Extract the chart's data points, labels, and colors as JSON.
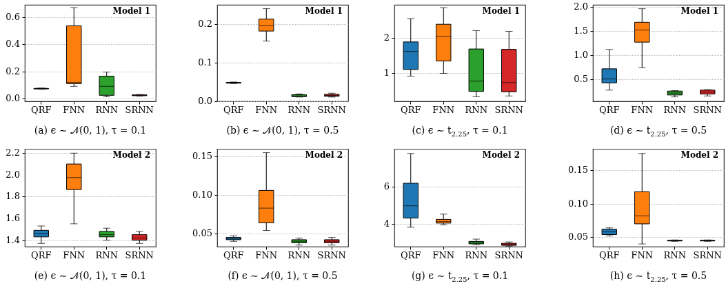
{
  "chart_data": [
    {
      "type": "box",
      "title": "(a) ϵ ∼ 𝒩(0, 1), τ = 0.1",
      "annotations": [
        "Model 1"
      ],
      "categories": [
        "QRF",
        "FNN",
        "RNN",
        "SRNN"
      ],
      "colors": [
        "#1f77b4",
        "#ff7f0e",
        "#2ca02c",
        "#d62728"
      ],
      "grid": "y",
      "ylim": [
        -0.02,
        0.69
      ],
      "yticks": [
        {
          "value": 0,
          "label": "0.0"
        },
        0.2,
        0.4,
        0.6
      ],
      "boxes": [
        {
          "low": 0.07,
          "q1": 0.071,
          "median": 0.073,
          "q3": 0.075,
          "high": 0.077
        },
        {
          "low": 0.09,
          "q1": 0.11,
          "median": 0.12,
          "q3": 0.535,
          "high": 0.67
        },
        {
          "low": 0.013,
          "q1": 0.024,
          "median": 0.09,
          "q3": 0.165,
          "high": 0.195
        },
        {
          "low": 0.018,
          "q1": 0.021,
          "median": 0.024,
          "q3": 0.027,
          "high": 0.03
        }
      ]
    },
    {
      "type": "box",
      "title": "(b) ϵ ∼ 𝒩(0, 1), τ = 0.5",
      "annotations": [
        "Model 1"
      ],
      "categories": [
        "QRF",
        "FNN",
        "RNN",
        "SRNN"
      ],
      "colors": [
        "#1f77b4",
        "#ff7f0e",
        "#2ca02c",
        "#d62728"
      ],
      "grid": "y",
      "ylim": [
        0,
        0.25
      ],
      "yticks": [
        {
          "value": 0,
          "label": "0.0"
        },
        {
          "value": 0.1,
          "label": "0.1"
        },
        {
          "value": 0.2,
          "label": "0.2"
        }
      ],
      "boxes": [
        {
          "low": 0.046,
          "q1": 0.047,
          "median": 0.048,
          "q3": 0.049,
          "high": 0.05
        },
        {
          "low": 0.156,
          "q1": 0.182,
          "median": 0.196,
          "q3": 0.213,
          "high": 0.24
        },
        {
          "low": 0.011,
          "q1": 0.012,
          "median": 0.014,
          "q3": 0.017,
          "high": 0.019
        },
        {
          "low": 0.011,
          "q1": 0.013,
          "median": 0.015,
          "q3": 0.018,
          "high": 0.021
        }
      ]
    },
    {
      "type": "box",
      "title": "(c) ϵ ∼ t$_{2.25}$, τ = 0.1",
      "annotations": [
        "Model 1"
      ],
      "categories": [
        "QRF",
        "FNN",
        "RNN",
        "SRNN"
      ],
      "colors": [
        "#1f77b4",
        "#ff7f0e",
        "#2ca02c",
        "#d62728"
      ],
      "grid": "y",
      "ylim": [
        0.2,
        2.93
      ],
      "yticks": [
        {
          "value": 1,
          "label": "1"
        },
        {
          "value": 2,
          "label": "2"
        }
      ],
      "boxes": [
        {
          "low": 0.91,
          "q1": 1.1,
          "median": 1.61,
          "q3": 1.88,
          "high": 2.54
        },
        {
          "low": 0.99,
          "q1": 1.34,
          "median": 2.04,
          "q3": 2.38,
          "high": 2.85
        },
        {
          "low": 0.33,
          "q1": 0.48,
          "median": 0.77,
          "q3": 1.68,
          "high": 2.2
        },
        {
          "low": 0.35,
          "q1": 0.47,
          "median": 0.73,
          "q3": 1.67,
          "high": 2.18
        }
      ]
    },
    {
      "type": "box",
      "title": "(d) ϵ ∼ t$_{2.25}$, τ = 0.5",
      "annotations": [
        "Model 1"
      ],
      "categories": [
        "QRF",
        "FNN",
        "RNN",
        "SRNN"
      ],
      "colors": [
        "#1f77b4",
        "#ff7f0e",
        "#2ca02c",
        "#d62728"
      ],
      "grid": "y",
      "ylim": [
        0.05,
        2.04
      ],
      "yticks": [
        0.5,
        {
          "value": 1,
          "label": "1.0"
        },
        1.5,
        {
          "value": 2,
          "label": "2.0"
        }
      ],
      "boxes": [
        {
          "low": 0.28,
          "q1": 0.43,
          "median": 0.51,
          "q3": 0.72,
          "high": 1.12
        },
        {
          "low": 0.74,
          "q1": 1.27,
          "median": 1.52,
          "q3": 1.68,
          "high": 1.96
        },
        {
          "low": 0.14,
          "q1": 0.18,
          "median": 0.22,
          "q3": 0.26,
          "high": 0.27
        },
        {
          "low": 0.16,
          "q1": 0.2,
          "median": 0.24,
          "q3": 0.28,
          "high": 0.29
        }
      ]
    },
    {
      "type": "box",
      "title": "(e) ϵ ∼ 𝒩(0, 1), τ = 0.1",
      "annotations": [
        "Model 2"
      ],
      "categories": [
        "QRF",
        "FNN",
        "RNN",
        "SRNN"
      ],
      "colors": [
        "#1f77b4",
        "#ff7f0e",
        "#2ca02c",
        "#d62728"
      ],
      "grid": "y",
      "ylim": [
        1.34,
        2.24
      ],
      "yticks": [
        1.4,
        1.6,
        1.8,
        {
          "value": 2,
          "label": "2.0"
        },
        2.2
      ],
      "boxes": [
        {
          "low": 1.37,
          "q1": 1.43,
          "median": 1.46,
          "q3": 1.49,
          "high": 1.53
        },
        {
          "low": 1.55,
          "q1": 1.865,
          "median": 1.975,
          "q3": 2.1,
          "high": 2.2
        },
        {
          "low": 1.4,
          "q1": 1.43,
          "median": 1.45,
          "q3": 1.48,
          "high": 1.51
        },
        {
          "low": 1.37,
          "q1": 1.4,
          "median": 1.42,
          "q3": 1.45,
          "high": 1.48
        }
      ]
    },
    {
      "type": "box",
      "title": "(f) ϵ ∼ 𝒩(0, 1), τ = 0.5",
      "annotations": [
        "Model 2"
      ],
      "categories": [
        "QRF",
        "FNN",
        "RNN",
        "SRNN"
      ],
      "colors": [
        "#1f77b4",
        "#ff7f0e",
        "#2ca02c",
        "#d62728"
      ],
      "grid": "y",
      "ylim": [
        0.033,
        0.16
      ],
      "yticks": [
        0.05,
        {
          "value": 0.1,
          "label": "0.10"
        },
        0.15
      ],
      "boxes": [
        {
          "low": 0.04,
          "q1": 0.042,
          "median": 0.043,
          "q3": 0.045,
          "high": 0.047
        },
        {
          "low": 0.054,
          "q1": 0.064,
          "median": 0.083,
          "q3": 0.106,
          "high": 0.155
        },
        {
          "low": 0.035,
          "q1": 0.038,
          "median": 0.04,
          "q3": 0.042,
          "high": 0.044
        },
        {
          "low": 0.035,
          "q1": 0.038,
          "median": 0.04,
          "q3": 0.042,
          "high": 0.045
        }
      ]
    },
    {
      "type": "box",
      "title": "(g) ϵ ∼ t$_{2.25}$, τ = 0.1",
      "annotations": [
        "Model 2"
      ],
      "categories": [
        "QRF",
        "FNN",
        "RNN",
        "SRNN"
      ],
      "colors": [
        "#1f77b4",
        "#ff7f0e",
        "#2ca02c",
        "#d62728"
      ],
      "grid": "y",
      "ylim": [
        2.8,
        8.0
      ],
      "yticks": [
        4,
        6
      ],
      "boxes": [
        {
          "low": 3.83,
          "q1": 4.32,
          "median": 4.97,
          "q3": 6.17,
          "high": 7.75
        },
        {
          "low": 3.96,
          "q1": 4.05,
          "median": 4.13,
          "q3": 4.25,
          "high": 4.53
        },
        {
          "low": 2.9,
          "q1": 2.95,
          "median": 3.0,
          "q3": 3.08,
          "high": 3.2
        },
        {
          "low": 2.83,
          "q1": 2.87,
          "median": 2.92,
          "q3": 2.98,
          "high": 3.05
        }
      ]
    },
    {
      "type": "box",
      "title": "(h) ϵ ∼ t$_{2.25}$, τ = 0.5",
      "annotations": [
        "Model 2"
      ],
      "categories": [
        "QRF",
        "FNN",
        "RNN",
        "SRNN"
      ],
      "colors": [
        "#1f77b4",
        "#ff7f0e",
        "#2ca02c",
        "#d62728"
      ],
      "grid": "y",
      "ylim": [
        0.036,
        0.182
      ],
      "yticks": [
        0.05,
        {
          "value": 0.1,
          "label": "0.10"
        },
        0.15
      ],
      "boxes": [
        {
          "low": 0.052,
          "q1": 0.054,
          "median": 0.058,
          "q3": 0.062,
          "high": 0.064
        },
        {
          "low": 0.04,
          "q1": 0.07,
          "median": 0.082,
          "q3": 0.118,
          "high": 0.175
        },
        {
          "low": 0.044,
          "q1": 0.0445,
          "median": 0.045,
          "q3": 0.0455,
          "high": 0.046
        },
        {
          "low": 0.044,
          "q1": 0.0445,
          "median": 0.045,
          "q3": 0.0455,
          "high": 0.046
        }
      ]
    }
  ]
}
